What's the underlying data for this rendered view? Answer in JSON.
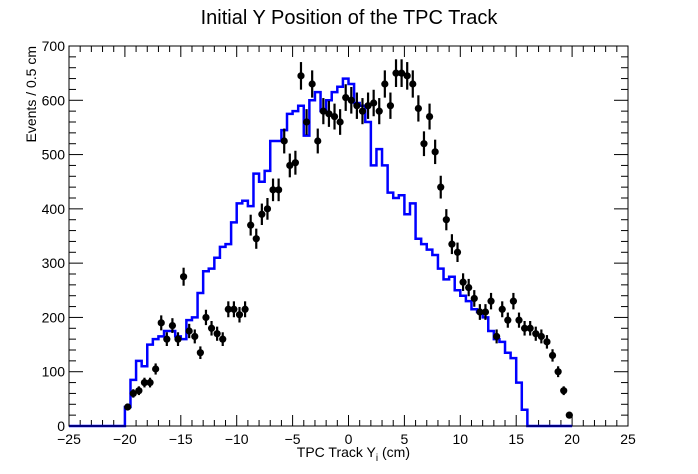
{
  "chart_data": {
    "type": "line",
    "title": "Initial Y Position of the TPC Track",
    "xlabel_main": "TPC Track Y",
    "xlabel_sub": "i",
    "xlabel_unit": " (cm)",
    "ylabel": "Events / 0.5 cm",
    "xlim": [
      -25,
      25
    ],
    "ylim": [
      0,
      700
    ],
    "x_ticks": [
      -25,
      -20,
      -15,
      -10,
      -5,
      0,
      5,
      10,
      15,
      20,
      25
    ],
    "y_ticks": [
      0,
      100,
      200,
      300,
      400,
      500,
      600,
      700
    ],
    "grid": false,
    "histogram": {
      "color": "#0000ff",
      "bin_width": 0.5,
      "bin_start": -25,
      "values": [
        0,
        0,
        0,
        0,
        0,
        0,
        0,
        0,
        0,
        0,
        35,
        85,
        120,
        110,
        150,
        160,
        165,
        175,
        175,
        165,
        160,
        195,
        200,
        245,
        285,
        290,
        310,
        330,
        335,
        375,
        410,
        415,
        405,
        465,
        450,
        470,
        525,
        525,
        545,
        575,
        580,
        590,
        535,
        600,
        615,
        580,
        600,
        615,
        625,
        640,
        630,
        595,
        590,
        560,
        480,
        510,
        480,
        430,
        420,
        425,
        390,
        410,
        345,
        335,
        325,
        315,
        290,
        270,
        275,
        250,
        240,
        230,
        215,
        210,
        200,
        175,
        160,
        155,
        135,
        125,
        80,
        30,
        0,
        0,
        0,
        0,
        0,
        0,
        0,
        0
      ]
    },
    "points": {
      "color": "#000000",
      "x": [
        -19.75,
        -19.25,
        -18.75,
        -18.25,
        -17.75,
        -17.25,
        -16.75,
        -16.25,
        -15.75,
        -15.25,
        -14.75,
        -14.25,
        -13.75,
        -13.25,
        -12.75,
        -12.25,
        -11.75,
        -11.25,
        -10.75,
        -10.25,
        -9.75,
        -9.25,
        -8.75,
        -8.25,
        -7.75,
        -7.25,
        -6.75,
        -6.25,
        -5.75,
        -5.25,
        -4.75,
        -4.25,
        -3.75,
        -3.25,
        -2.75,
        -2.25,
        -1.75,
        -1.25,
        -0.75,
        -0.25,
        0.25,
        0.75,
        1.25,
        1.75,
        2.25,
        2.75,
        3.25,
        3.75,
        4.25,
        4.75,
        5.25,
        5.75,
        6.25,
        6.75,
        7.25,
        7.75,
        8.25,
        8.75,
        9.25,
        9.75,
        10.25,
        10.75,
        11.25,
        11.75,
        12.25,
        12.75,
        13.25,
        13.75,
        14.25,
        14.75,
        15.25,
        15.75,
        16.25,
        16.75,
        17.25,
        17.75,
        18.25,
        18.75,
        19.25,
        19.75
      ],
      "y": [
        35,
        60,
        65,
        80,
        80,
        105,
        190,
        160,
        185,
        160,
        275,
        175,
        165,
        135,
        200,
        180,
        170,
        160,
        215,
        215,
        205,
        215,
        370,
        345,
        390,
        400,
        435,
        435,
        525,
        480,
        485,
        645,
        560,
        630,
        525,
        580,
        575,
        570,
        560,
        605,
        600,
        590,
        580,
        590,
        595,
        580,
        630,
        590,
        650,
        650,
        645,
        630,
        585,
        520,
        570,
        505,
        440,
        380,
        335,
        320,
        265,
        255,
        235,
        210,
        210,
        230,
        165,
        215,
        195,
        230,
        195,
        180,
        180,
        170,
        165,
        155,
        130,
        100,
        65,
        20
      ]
    }
  }
}
